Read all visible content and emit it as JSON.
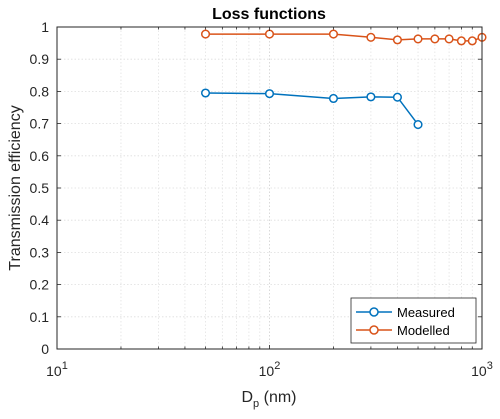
{
  "chart_data": {
    "type": "line",
    "title": "Loss functions",
    "xlabel_main": "D",
    "xlabel_sub": "p",
    "xlabel_unit": " (nm)",
    "ylabel": "Transmission efficiency",
    "xscale": "log",
    "xlim": [
      10,
      1000
    ],
    "ylim": [
      0,
      1
    ],
    "grid": true,
    "legend_position": "bottom-right",
    "x_ticks": [
      {
        "value": 10,
        "base": "10",
        "exp": "1"
      },
      {
        "value": 100,
        "base": "10",
        "exp": "2"
      },
      {
        "value": 1000,
        "base": "10",
        "exp": "3"
      }
    ],
    "y_ticks": [
      {
        "value": 0,
        "label": "0"
      },
      {
        "value": 0.1,
        "label": "0.1"
      },
      {
        "value": 0.2,
        "label": "0.2"
      },
      {
        "value": 0.3,
        "label": "0.3"
      },
      {
        "value": 0.4,
        "label": "0.4"
      },
      {
        "value": 0.5,
        "label": "0.5"
      },
      {
        "value": 0.6,
        "label": "0.6"
      },
      {
        "value": 0.7,
        "label": "0.7"
      },
      {
        "value": 0.8,
        "label": "0.8"
      },
      {
        "value": 0.9,
        "label": "0.9"
      },
      {
        "value": 1,
        "label": "1"
      }
    ],
    "series": [
      {
        "name": "Measured",
        "color": "#0072BD",
        "marker": "circle",
        "x": [
          50,
          100,
          200,
          300,
          400,
          500
        ],
        "y": [
          0.795,
          0.793,
          0.778,
          0.783,
          0.782,
          0.697
        ]
      },
      {
        "name": "Modelled",
        "color": "#D95319",
        "marker": "circle",
        "x": [
          50,
          100,
          200,
          300,
          400,
          500,
          600,
          700,
          800,
          900,
          1000
        ],
        "y": [
          0.978,
          0.978,
          0.978,
          0.968,
          0.96,
          0.963,
          0.963,
          0.963,
          0.957,
          0.957,
          0.968
        ]
      }
    ]
  }
}
